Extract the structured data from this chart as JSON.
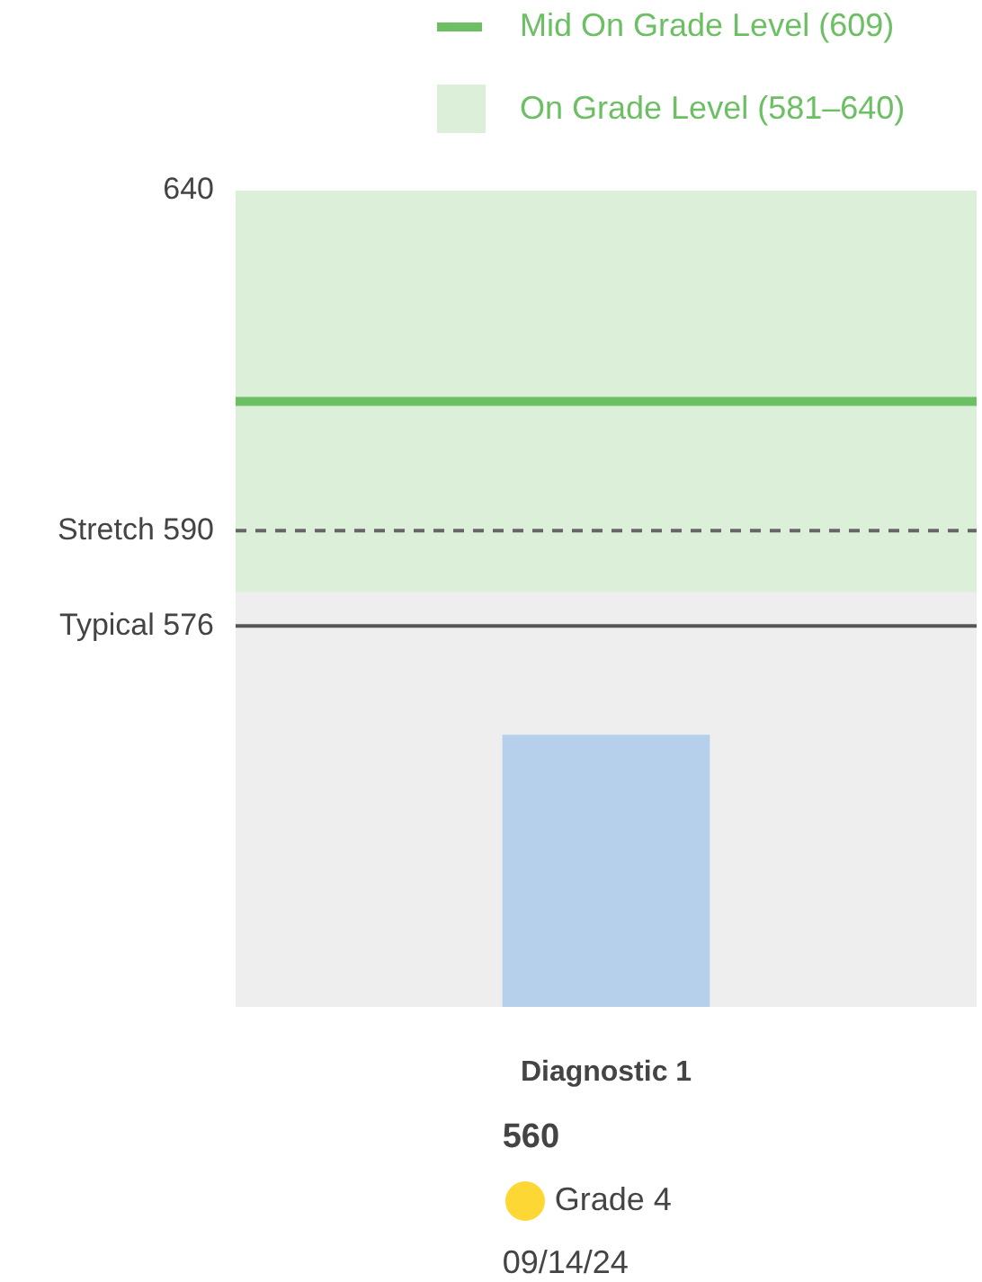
{
  "chart_data": {
    "type": "bar",
    "categories": [
      "Diagnostic 1"
    ],
    "values": [
      560
    ],
    "color": "#b6cfea",
    "ylim": [
      520,
      640
    ],
    "yticks": [
      640,
      590,
      576
    ],
    "grid": false,
    "legend": "top right",
    "ref_lines": [
      {
        "axis": "y",
        "value": 609,
        "label": "Mid On Grade Level (609)",
        "color": "#6cbf63",
        "line_style": "solid"
      },
      {
        "axis": "y",
        "value": 590,
        "label": "Stretch",
        "color": "#666666",
        "line_style": "dashed"
      },
      {
        "axis": "y",
        "value": 576,
        "label": "Typical",
        "color": "#555555",
        "line_style": "solid"
      }
    ],
    "bands": [
      {
        "axis": "y",
        "from": 581,
        "to": 640,
        "label": "On Grade Level (581–640)",
        "color": "#dcefd9"
      }
    ],
    "annotations": [
      "560",
      "Grade 4",
      "09/14/24"
    ]
  }
}
